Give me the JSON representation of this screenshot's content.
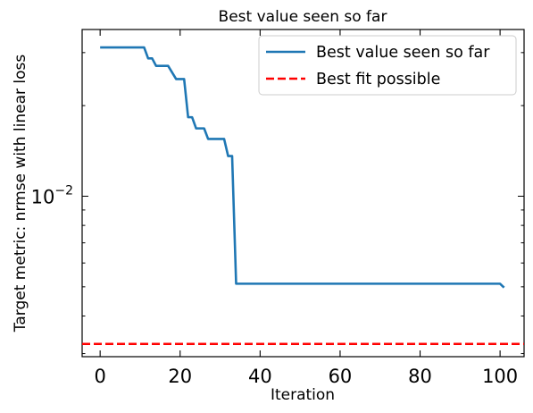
{
  "chart_data": {
    "type": "line",
    "title": "Best value seen so far",
    "xlabel": "Iteration",
    "ylabel": "Target metric: nrmse with linear loss",
    "x_scale": "linear",
    "y_scale": "log",
    "xlim": [
      -4.5,
      106
    ],
    "ylim": [
      0.00293,
      0.0358
    ],
    "xticks": [
      0,
      20,
      40,
      60,
      80,
      100
    ],
    "xtick_labels": [
      "0",
      "20",
      "40",
      "60",
      "80",
      "100"
    ],
    "yticks": [
      0.01
    ],
    "ytick_base": "10",
    "ytick_exponent": "−2",
    "grid": false,
    "legend_position": "upper-right",
    "series": [
      {
        "name": "Best value seen so far",
        "color": "#1f77b4",
        "style": "solid",
        "x": [
          0,
          11,
          12,
          13,
          14,
          17,
          19,
          21,
          22,
          23,
          24,
          26,
          27,
          31,
          32,
          33,
          34,
          100,
          101
        ],
        "y": [
          0.0312,
          0.0312,
          0.0287,
          0.0287,
          0.0271,
          0.0271,
          0.0245,
          0.0245,
          0.0183,
          0.0183,
          0.0168,
          0.0168,
          0.0155,
          0.0155,
          0.0136,
          0.0136,
          0.00512,
          0.00512,
          0.00497
        ]
      },
      {
        "name": "Best fit possible",
        "color": "#ff0000",
        "style": "dashed",
        "y_constant": 0.00323
      }
    ]
  }
}
